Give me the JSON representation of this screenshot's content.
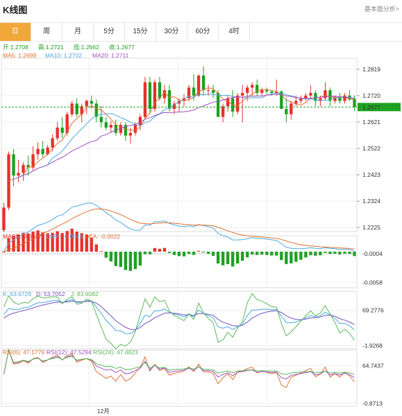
{
  "header": {
    "title": "K线图",
    "analysis_link": "基本面分析>"
  },
  "tabs": [
    {
      "label": "日",
      "active": true
    },
    {
      "label": "周",
      "active": false
    },
    {
      "label": "月",
      "active": false
    },
    {
      "label": "5分",
      "active": false
    },
    {
      "label": "15分",
      "active": false
    },
    {
      "label": "30分",
      "active": false
    },
    {
      "label": "60分",
      "active": false
    },
    {
      "label": "4时",
      "active": false
    }
  ],
  "colors": {
    "up": "#e8302a",
    "down": "#1da122",
    "ma5": "#e07030",
    "ma10": "#4aa8e0",
    "ma20": "#a050c0",
    "diff": "#4aa8e0",
    "dea": "#e07030",
    "k": "#4aa8e0",
    "d": "#7050c0",
    "j": "#58b858",
    "rsi6": "#e07030",
    "rsi12": "#a050c0",
    "rsi24": "#58b858",
    "price_line": "#1da122"
  },
  "chart_data": [
    {
      "type": "candlestick",
      "legend": {
        "open": "开:1.2708",
        "high": "高:1.2721",
        "low": "低:1.2662",
        "close": "收:1.2677",
        "ma5": "MA5: 1.2699",
        "ma10": "MA10: 1.2702",
        "ma20": "MA20: 1.2711"
      },
      "y_ticks": [
        "1.2819",
        "1.2720",
        "1.2621",
        "1.2522",
        "1.2423",
        "1.2324",
        "1.2225"
      ],
      "y_tick_values": [
        1.2819,
        1.272,
        1.2621,
        1.2522,
        1.2423,
        1.2324,
        1.2225
      ],
      "ylim": [
        1.221,
        1.286
      ],
      "current_price": "1.2677",
      "current_value": 1.2677,
      "x_label": "12月",
      "x_label_index": 20,
      "candles": [
        [
          1.2215,
          1.2318,
          1.2208,
          1.23
        ],
        [
          1.23,
          1.251,
          1.229,
          1.25
        ],
        [
          1.25,
          1.252,
          1.238,
          1.242
        ],
        [
          1.242,
          1.248,
          1.2395,
          1.243
        ],
        [
          1.243,
          1.247,
          1.24,
          1.246
        ],
        [
          1.246,
          1.2495,
          1.242,
          1.245
        ],
        [
          1.245,
          1.253,
          1.244,
          1.25
        ],
        [
          1.25,
          1.2545,
          1.248,
          1.252
        ],
        [
          1.252,
          1.255,
          1.249,
          1.25
        ],
        [
          1.25,
          1.2535,
          1.2495,
          1.2525
        ],
        [
          1.2525,
          1.2575,
          1.251,
          1.256
        ],
        [
          1.256,
          1.262,
          1.255,
          1.26
        ],
        [
          1.26,
          1.264,
          1.256,
          1.258
        ],
        [
          1.258,
          1.266,
          1.257,
          1.265
        ],
        [
          1.265,
          1.27,
          1.264,
          1.269
        ],
        [
          1.269,
          1.271,
          1.264,
          1.265
        ],
        [
          1.265,
          1.269,
          1.262,
          1.268
        ],
        [
          1.268,
          1.2705,
          1.265,
          1.27
        ],
        [
          1.27,
          1.272,
          1.267,
          1.269
        ],
        [
          1.269,
          1.2705,
          1.262,
          1.264
        ],
        [
          1.264,
          1.268,
          1.26,
          1.262
        ],
        [
          1.262,
          1.264,
          1.259,
          1.26
        ],
        [
          1.26,
          1.2625,
          1.258,
          1.261
        ],
        [
          1.261,
          1.263,
          1.257,
          1.258
        ],
        [
          1.258,
          1.262,
          1.257,
          1.261
        ],
        [
          1.261,
          1.262,
          1.255,
          1.257
        ],
        [
          1.257,
          1.26,
          1.254,
          1.258
        ],
        [
          1.258,
          1.262,
          1.257,
          1.261
        ],
        [
          1.261,
          1.265,
          1.259,
          1.264
        ],
        [
          1.264,
          1.279,
          1.263,
          1.277
        ],
        [
          1.277,
          1.279,
          1.265,
          1.267
        ],
        [
          1.267,
          1.278,
          1.266,
          1.277
        ],
        [
          1.277,
          1.279,
          1.27,
          1.271
        ],
        [
          1.271,
          1.276,
          1.269,
          1.274
        ],
        [
          1.274,
          1.276,
          1.266,
          1.267
        ],
        [
          1.267,
          1.27,
          1.265,
          1.269
        ],
        [
          1.269,
          1.271,
          1.266,
          1.27
        ],
        [
          1.27,
          1.2725,
          1.268,
          1.271
        ],
        [
          1.271,
          1.276,
          1.27,
          1.275
        ],
        [
          1.275,
          1.28,
          1.27,
          1.272
        ],
        [
          1.272,
          1.28,
          1.2715,
          1.2795
        ],
        [
          1.2795,
          1.283,
          1.272,
          1.274
        ],
        [
          1.274,
          1.276,
          1.272,
          1.274
        ],
        [
          1.274,
          1.276,
          1.271,
          1.273
        ],
        [
          1.273,
          1.274,
          1.264,
          1.264
        ],
        [
          1.264,
          1.269,
          1.262,
          1.268
        ],
        [
          1.268,
          1.272,
          1.266,
          1.271
        ],
        [
          1.271,
          1.274,
          1.264,
          1.266
        ],
        [
          1.266,
          1.273,
          1.265,
          1.272
        ],
        [
          1.272,
          1.276,
          1.262,
          1.273
        ],
        [
          1.273,
          1.276,
          1.27,
          1.275
        ],
        [
          1.275,
          1.277,
          1.272,
          1.276
        ],
        [
          1.276,
          1.278,
          1.272,
          1.273
        ],
        [
          1.273,
          1.275,
          1.272,
          1.274
        ],
        [
          1.274,
          1.275,
          1.2725,
          1.2735
        ],
        [
          1.2735,
          1.274,
          1.272,
          1.273
        ],
        [
          1.273,
          1.278,
          1.272,
          1.2735
        ],
        [
          1.2735,
          1.274,
          1.267,
          1.267
        ],
        [
          1.267,
          1.271,
          1.262,
          1.265
        ],
        [
          1.265,
          1.27,
          1.263,
          1.269
        ],
        [
          1.269,
          1.272,
          1.268,
          1.27
        ],
        [
          1.27,
          1.272,
          1.269,
          1.271
        ],
        [
          1.271,
          1.273,
          1.27,
          1.272
        ],
        [
          1.272,
          1.276,
          1.271,
          1.273
        ],
        [
          1.273,
          1.274,
          1.268,
          1.27
        ],
        [
          1.27,
          1.272,
          1.268,
          1.271
        ],
        [
          1.271,
          1.277,
          1.27,
          1.274
        ],
        [
          1.274,
          1.275,
          1.268,
          1.27
        ],
        [
          1.27,
          1.272,
          1.269,
          1.2715
        ],
        [
          1.2715,
          1.273,
          1.269,
          1.27
        ],
        [
          1.27,
          1.273,
          1.269,
          1.272
        ],
        [
          1.272,
          1.274,
          1.27,
          1.2705
        ],
        [
          1.2708,
          1.2721,
          1.2662,
          1.2677
        ]
      ]
    },
    {
      "type": "bar",
      "name": "MACD",
      "legend": {
        "macd": "MACD: 0.0017",
        "diff": "DIFF: -0.0013",
        "dea": "DEA: -0.0022"
      },
      "y_ticks": [
        "-0.0004",
        "-0.0058"
      ],
      "y_tick_values": [
        -0.0004,
        -0.0058
      ],
      "ylim": [
        -0.0068,
        0.003
      ],
      "current_value": -0.0004
    },
    {
      "type": "line",
      "name": "KDJ",
      "legend": {
        "k": "K: 63.6729",
        "d": "D: 53.7052",
        "j": "J: 83.6082"
      },
      "y_ticks": [
        "69.2776",
        "-1.9268"
      ],
      "y_tick_values": [
        69.2776,
        -1.9268
      ],
      "ylim": [
        -8,
        108
      ]
    },
    {
      "type": "line",
      "name": "RSI",
      "legend": {
        "rsi6": "RSI(6): 47.1779",
        "rsi12": "RSI(12): 47.5294",
        "rsi24": "RSI(24): 47.4823"
      },
      "y_ticks": [
        "64.7437",
        "-0.8713"
      ],
      "y_tick_values": [
        64.7437,
        -0.8713
      ],
      "ylim": [
        -6,
        92
      ]
    }
  ]
}
